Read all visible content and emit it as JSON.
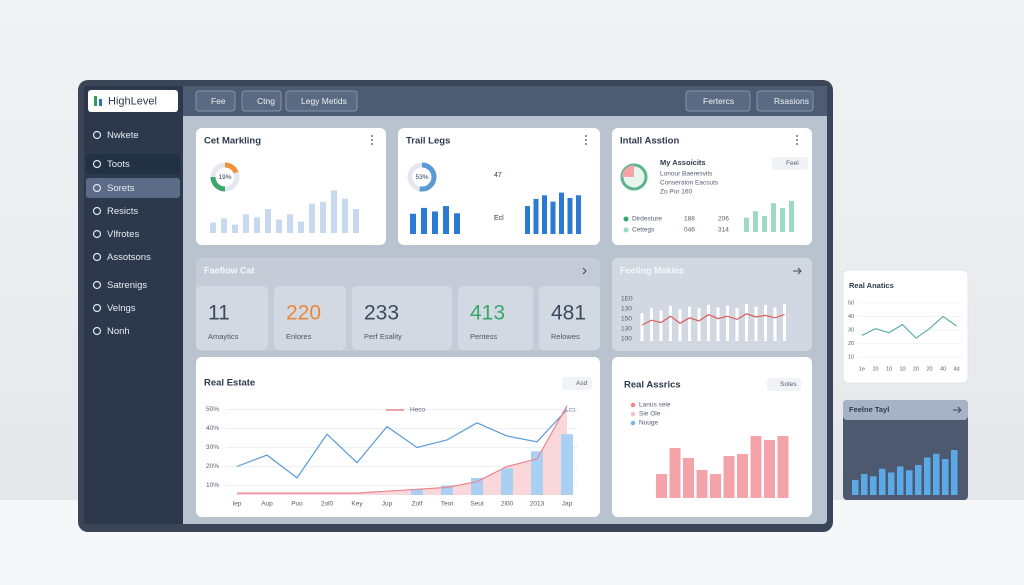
{
  "header": {
    "logo": "HighLevel",
    "tabs": [
      "Fee",
      "Ctng",
      "Legy Metids"
    ],
    "actions": [
      "Fertercs",
      "Rsasions"
    ]
  },
  "sidebar": [
    "Nwkete",
    "Toots",
    "Sorets",
    "Resicts",
    "Vlfrotes",
    "Assotsons",
    "Satrenigs",
    "Velngs",
    "Nonh"
  ],
  "marketing": {
    "title": "Cet Markling",
    "donut": {
      "value": 19,
      "label": "19%"
    },
    "bars": [
      20,
      28,
      16,
      36,
      30,
      46,
      26,
      36,
      22,
      56,
      60,
      82,
      66,
      46
    ]
  },
  "trail": {
    "title": "Trail Legs",
    "donut": {
      "value": 53,
      "label": "53%"
    },
    "top": "47",
    "bottom": "Ecl",
    "bars_left": [
      45,
      58,
      50,
      62,
      46
    ],
    "bars_right": [
      62,
      78,
      86,
      72,
      92,
      80,
      86
    ]
  },
  "install": {
    "title": "Intall Asstion",
    "heading": "My Assoicits",
    "lines": [
      "Lonour Baeresvits",
      "Conseraion Eacsuts",
      "Zo Por 160"
    ],
    "button": "Feel",
    "legend": [
      {
        "name": "Dirdesture",
        "a": "188",
        "b": "206"
      },
      {
        "name": "Cettegs",
        "a": "046",
        "b": "314"
      }
    ],
    "bars": [
      36,
      52,
      40,
      72,
      60,
      78
    ]
  },
  "overview": {
    "title": "Faefiow Cat",
    "stats": [
      {
        "value": 11,
        "label": "Amaytics"
      },
      {
        "value": 220,
        "label": "Enlores"
      },
      {
        "value": 233,
        "label": "Perf Esality"
      },
      {
        "value": 413,
        "label": "Pentess"
      },
      {
        "value": 481,
        "label": "Relowes"
      }
    ]
  },
  "feeling": {
    "title": "Feeling Makies",
    "axis_labels": [
      "1E0",
      "130",
      "150",
      "130",
      "100"
    ],
    "line": [
      40,
      52,
      46,
      62,
      44,
      58,
      50,
      66,
      56,
      62,
      54,
      68,
      60,
      64,
      58,
      66
    ],
    "bars": [
      70,
      82,
      76,
      88,
      80,
      86,
      82,
      90,
      84,
      88,
      82,
      92,
      86,
      90,
      84,
      92
    ]
  },
  "real_estate": {
    "title": "Real Estate",
    "button": "Asd",
    "ylim": [
      5,
      55
    ],
    "yticks": [
      {
        "value": 50,
        "label": "50%"
      },
      {
        "value": 40,
        "label": "40%"
      },
      {
        "value": 30,
        "label": "30%"
      },
      {
        "value": 20,
        "label": "20%"
      },
      {
        "value": 10,
        "label": "10%"
      }
    ],
    "categories": [
      "Iep",
      "Aup",
      "Puo",
      "2ol0",
      "Key",
      "Jup",
      "Zolf",
      "Teot",
      "Seut",
      "2l00",
      "2013",
      "Jap"
    ],
    "series": [
      {
        "color": "#5b9bd5",
        "values": [
          20,
          26,
          14,
          37,
          22,
          41,
          30,
          34,
          43,
          36,
          33,
          50
        ]
      },
      {
        "name": "Heco",
        "color": "#e8868e",
        "values": [
          6,
          6,
          6,
          6,
          6,
          7,
          8,
          9,
          12,
          20,
          24,
          52
        ]
      }
    ],
    "bars": [
      null,
      null,
      null,
      null,
      null,
      null,
      8,
      10,
      14,
      19,
      28,
      37
    ],
    "annotation": "Les"
  },
  "assets": {
    "title": "Real Assrics",
    "button": "Sotes",
    "legend": [
      "Lanus sele",
      "Sie Ole",
      "Nuuge"
    ],
    "bars": [
      24,
      50,
      40,
      28,
      24,
      42,
      44,
      62,
      58,
      62
    ]
  },
  "analytics": {
    "title": "Real Anatics",
    "ylim": [
      5,
      55
    ],
    "yticks": [
      50,
      40,
      30,
      20,
      10
    ],
    "categories": [
      "1e",
      "10",
      "10",
      "10",
      "20",
      "20",
      "40",
      "4d"
    ],
    "values": [
      26,
      31,
      28,
      34,
      24,
      31,
      40,
      33
    ]
  },
  "tail": {
    "title": "Feelne Tayl",
    "bars": [
      20,
      28,
      25,
      35,
      30,
      38,
      33,
      40,
      50,
      55,
      48,
      60
    ]
  }
}
